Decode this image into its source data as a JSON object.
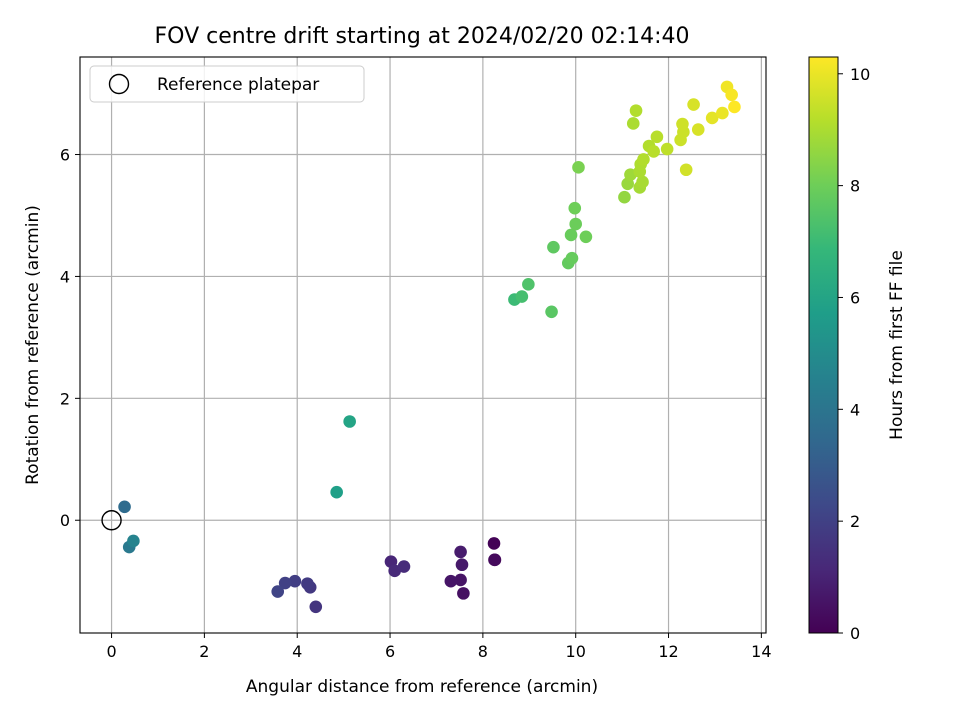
{
  "chart_data": {
    "type": "scatter",
    "title": "FOV centre drift starting at 2024/02/20 02:14:40",
    "xlabel": "Angular distance from reference (arcmin)",
    "ylabel": "Rotation from reference (arcmin)",
    "xlim": [
      -0.68,
      14.1
    ],
    "ylim": [
      -1.85,
      7.6
    ],
    "xticks": [
      0,
      2,
      4,
      6,
      8,
      10,
      12,
      14
    ],
    "yticks": [
      0,
      2,
      4,
      6
    ],
    "grid": true,
    "legend": {
      "placement": "top-left",
      "entries": [
        {
          "label": "Reference platepar",
          "marker": "open-circle"
        }
      ]
    },
    "reference_point": {
      "x": 0,
      "y": 0
    },
    "colorbar": {
      "label": "Hours from first FF file",
      "colormap": "viridis",
      "range": [
        0,
        10.3
      ],
      "ticks": [
        0,
        2,
        4,
        6,
        8,
        10
      ],
      "colors": [
        "#440154",
        "#482878",
        "#3e4989",
        "#31688e",
        "#26828e",
        "#1f9e89",
        "#35b779",
        "#6ece58",
        "#b5de2b",
        "#fde725"
      ]
    },
    "points": [
      {
        "x": 8.24,
        "y": -0.38,
        "hours": 0.05
      },
      {
        "x": 8.26,
        "y": -0.65,
        "hours": 0.15
      },
      {
        "x": 8.25,
        "y": -0.65,
        "hours": 0.25
      },
      {
        "x": 7.58,
        "y": -1.2,
        "hours": 0.45
      },
      {
        "x": 7.52,
        "y": -0.98,
        "hours": 0.55
      },
      {
        "x": 7.31,
        "y": -1.0,
        "hours": 0.6
      },
      {
        "x": 7.55,
        "y": -0.73,
        "hours": 0.7
      },
      {
        "x": 7.52,
        "y": -0.52,
        "hours": 0.8
      },
      {
        "x": 6.02,
        "y": -0.68,
        "hours": 1.1
      },
      {
        "x": 6.1,
        "y": -0.83,
        "hours": 1.2
      },
      {
        "x": 6.3,
        "y": -0.76,
        "hours": 1.3
      },
      {
        "x": 4.4,
        "y": -1.42,
        "hours": 1.6
      },
      {
        "x": 4.28,
        "y": -1.1,
        "hours": 1.7
      },
      {
        "x": 4.22,
        "y": -1.04,
        "hours": 1.8
      },
      {
        "x": 3.95,
        "y": -1.0,
        "hours": 1.9
      },
      {
        "x": 3.74,
        "y": -1.03,
        "hours": 2.0
      },
      {
        "x": 3.58,
        "y": -1.17,
        "hours": 2.1
      },
      {
        "x": 0.28,
        "y": 0.22,
        "hours": 3.6
      },
      {
        "x": 0.38,
        "y": -0.44,
        "hours": 4.2
      },
      {
        "x": 0.47,
        "y": -0.34,
        "hours": 4.6
      },
      {
        "x": 4.85,
        "y": 0.46,
        "hours": 5.8
      },
      {
        "x": 5.13,
        "y": 1.62,
        "hours": 6.0
      },
      {
        "x": 8.68,
        "y": 3.62,
        "hours": 7.0
      },
      {
        "x": 8.84,
        "y": 3.67,
        "hours": 7.2
      },
      {
        "x": 8.98,
        "y": 3.87,
        "hours": 7.4
      },
      {
        "x": 9.48,
        "y": 3.42,
        "hours": 7.6
      },
      {
        "x": 9.52,
        "y": 4.48,
        "hours": 7.7
      },
      {
        "x": 9.84,
        "y": 4.22,
        "hours": 7.8
      },
      {
        "x": 9.92,
        "y": 4.3,
        "hours": 7.85
      },
      {
        "x": 9.9,
        "y": 4.68,
        "hours": 7.9
      },
      {
        "x": 10.0,
        "y": 4.86,
        "hours": 7.95
      },
      {
        "x": 10.22,
        "y": 4.65,
        "hours": 8.0
      },
      {
        "x": 9.98,
        "y": 5.12,
        "hours": 8.0
      },
      {
        "x": 10.06,
        "y": 5.79,
        "hours": 8.2
      },
      {
        "x": 11.05,
        "y": 5.3,
        "hours": 8.6
      },
      {
        "x": 11.12,
        "y": 5.52,
        "hours": 8.7
      },
      {
        "x": 11.18,
        "y": 5.67,
        "hours": 8.8
      },
      {
        "x": 11.38,
        "y": 5.46,
        "hours": 8.9
      },
      {
        "x": 11.44,
        "y": 5.55,
        "hours": 8.95
      },
      {
        "x": 11.38,
        "y": 5.72,
        "hours": 9.0
      },
      {
        "x": 11.4,
        "y": 5.84,
        "hours": 9.05
      },
      {
        "x": 11.46,
        "y": 5.92,
        "hours": 9.1
      },
      {
        "x": 11.58,
        "y": 6.14,
        "hours": 9.1
      },
      {
        "x": 11.68,
        "y": 6.05,
        "hours": 9.2
      },
      {
        "x": 11.75,
        "y": 6.29,
        "hours": 9.2
      },
      {
        "x": 11.97,
        "y": 6.09,
        "hours": 9.3
      },
      {
        "x": 11.24,
        "y": 6.51,
        "hours": 9.0
      },
      {
        "x": 11.3,
        "y": 6.72,
        "hours": 9.1
      },
      {
        "x": 12.26,
        "y": 6.24,
        "hours": 9.5
      },
      {
        "x": 12.32,
        "y": 6.37,
        "hours": 9.5
      },
      {
        "x": 12.3,
        "y": 6.5,
        "hours": 9.55
      },
      {
        "x": 12.38,
        "y": 5.75,
        "hours": 9.6
      },
      {
        "x": 12.54,
        "y": 6.82,
        "hours": 9.7
      },
      {
        "x": 12.64,
        "y": 6.41,
        "hours": 9.7
      },
      {
        "x": 12.94,
        "y": 6.6,
        "hours": 9.9
      },
      {
        "x": 13.16,
        "y": 6.68,
        "hours": 10.0
      },
      {
        "x": 13.26,
        "y": 7.11,
        "hours": 10.1
      },
      {
        "x": 13.36,
        "y": 6.98,
        "hours": 10.2
      },
      {
        "x": 13.42,
        "y": 6.78,
        "hours": 10.3
      }
    ]
  }
}
